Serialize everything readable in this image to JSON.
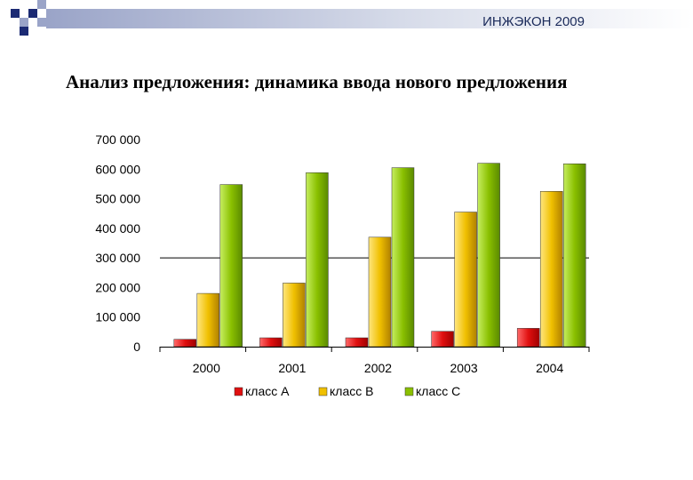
{
  "header": {
    "text": "ИНЖЭКОН 2009"
  },
  "title": "Анализ предложения: динамика ввода нового предложения",
  "chart_data": {
    "type": "bar",
    "categories": [
      "2000",
      "2001",
      "2002",
      "2003",
      "2004"
    ],
    "ylim": [
      0,
      700000
    ],
    "yticks": [
      "0",
      "100 000",
      "200 000",
      "300 000",
      "400 000",
      "500 000",
      "600 000",
      "700 000"
    ],
    "reference_line": 300000,
    "legend_position": "bottom",
    "series": [
      {
        "name": "класс А",
        "color": "#e01010",
        "values": [
          25000,
          30000,
          30000,
          52000,
          62000
        ]
      },
      {
        "name": "класс В",
        "color": "#f0c000",
        "values": [
          180000,
          215000,
          370000,
          455000,
          525000
        ]
      },
      {
        "name": "класс С",
        "color": "#8ac000",
        "values": [
          548000,
          588000,
          605000,
          620000,
          618000
        ]
      }
    ]
  }
}
